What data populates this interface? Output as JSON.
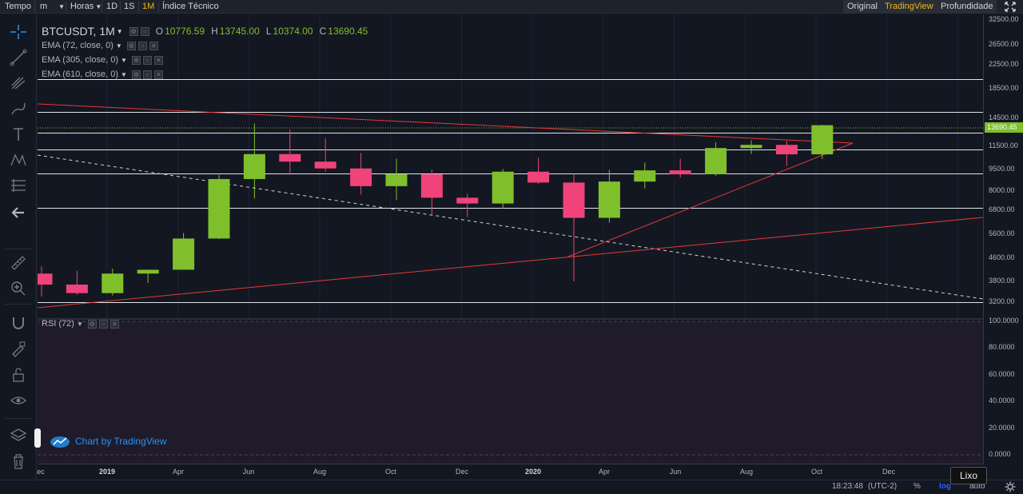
{
  "toolbar": {
    "tempo": "Tempo",
    "minutes": "m",
    "hours": "Horas",
    "tf_1d": "1D",
    "tf_1s": "1S",
    "tf_1m": "1M",
    "indicators": "Índice Técnico",
    "view_original": "Original",
    "view_tradingview": "TradingView",
    "view_depth": "Profundidade",
    "fullscreen_icon": "expand-arrows-icon"
  },
  "legend": {
    "symbol": "BTCUSDT, 1M",
    "open_label": "O",
    "open": "10776.59",
    "high_label": "H",
    "high": "13745.00",
    "low_label": "L",
    "low": "10374.00",
    "close_label": "C",
    "close": "13690.45",
    "ema1": "EMA (72, close, 0)",
    "ema2": "EMA (305, close, 0)",
    "ema3": "EMA (610, close, 0)"
  },
  "rsi": {
    "label": "RSI (72)"
  },
  "watermark": "Chart by TradingView",
  "price_scale": {
    "ticks": [
      "32500.00",
      "26500.00",
      "22500.00",
      "18500.00",
      "14500.00",
      "11500.00",
      "9500.00",
      "8000.00",
      "6800.00",
      "5600.00",
      "4600.00",
      "3800.00",
      "3200.00"
    ],
    "current": "13690.45",
    "rsi_ticks": [
      "100.0000",
      "80.0000",
      "60.0000",
      "40.0000",
      "20.0000",
      "0.0000"
    ]
  },
  "time_axis": {
    "labels": [
      {
        "text": "ec",
        "bold": false
      },
      {
        "text": "2019",
        "bold": true
      },
      {
        "text": "Apr",
        "bold": false
      },
      {
        "text": "Jun",
        "bold": false
      },
      {
        "text": "Aug",
        "bold": false
      },
      {
        "text": "Oct",
        "bold": false
      },
      {
        "text": "Dec",
        "bold": false
      },
      {
        "text": "2020",
        "bold": true
      },
      {
        "text": "Apr",
        "bold": false
      },
      {
        "text": "Jun",
        "bold": false
      },
      {
        "text": "Aug",
        "bold": false
      },
      {
        "text": "Oct",
        "bold": false
      },
      {
        "text": "Dec",
        "bold": false
      }
    ]
  },
  "status": {
    "time": "18:23:48",
    "tz": "(UTC-2)",
    "percent": "%",
    "log": "log",
    "auto": "auto",
    "settings_icon": "gear-icon"
  },
  "tooltip": "Lixo",
  "colors": {
    "up": "#7fbf2c",
    "down": "#f0437a",
    "trend": "#e53935",
    "bg": "#131722"
  },
  "chart_data": {
    "type": "candlestick",
    "scale": "log",
    "ylim": [
      3000,
      34000
    ],
    "candles": [
      {
        "o": 4050,
        "h": 4300,
        "l": 3350,
        "c": 3700
      },
      {
        "o": 3700,
        "h": 4150,
        "l": 3400,
        "c": 3450
      },
      {
        "o": 3450,
        "h": 4220,
        "l": 3380,
        "c": 4050
      },
      {
        "o": 4050,
        "h": 4120,
        "l": 3750,
        "c": 4180
      },
      {
        "o": 4180,
        "h": 5650,
        "l": 4180,
        "c": 5400
      },
      {
        "o": 5400,
        "h": 9100,
        "l": 5380,
        "c": 8800
      },
      {
        "o": 8800,
        "h": 13900,
        "l": 7500,
        "c": 10800
      },
      {
        "o": 10800,
        "h": 13200,
        "l": 9100,
        "c": 10150
      },
      {
        "o": 10150,
        "h": 12300,
        "l": 9350,
        "c": 9600
      },
      {
        "o": 9600,
        "h": 10900,
        "l": 7750,
        "c": 8300
      },
      {
        "o": 8300,
        "h": 10400,
        "l": 7400,
        "c": 9150
      },
      {
        "o": 9150,
        "h": 9500,
        "l": 6600,
        "c": 7550
      },
      {
        "o": 7550,
        "h": 7800,
        "l": 6450,
        "c": 7200
      },
      {
        "o": 7200,
        "h": 9550,
        "l": 6900,
        "c": 9350
      },
      {
        "o": 9350,
        "h": 10500,
        "l": 8450,
        "c": 8550
      },
      {
        "o": 8550,
        "h": 9180,
        "l": 3800,
        "c": 6400
      },
      {
        "o": 6400,
        "h": 9480,
        "l": 6150,
        "c": 8620
      },
      {
        "o": 8620,
        "h": 10080,
        "l": 8150,
        "c": 9450
      },
      {
        "o": 9450,
        "h": 10400,
        "l": 8900,
        "c": 9150
      },
      {
        "o": 9150,
        "h": 11900,
        "l": 9050,
        "c": 11350
      },
      {
        "o": 11350,
        "h": 12100,
        "l": 10800,
        "c": 11650
      },
      {
        "o": 11650,
        "h": 12050,
        "l": 9800,
        "c": 10780
      },
      {
        "o": 10776.59,
        "h": 13745,
        "l": 10374,
        "c": 13690.45
      }
    ],
    "horizontal_levels": [
      20000,
      15300,
      12900,
      11250,
      9200,
      6950,
      3200
    ],
    "rsi_ylim": [
      0,
      100
    ]
  }
}
